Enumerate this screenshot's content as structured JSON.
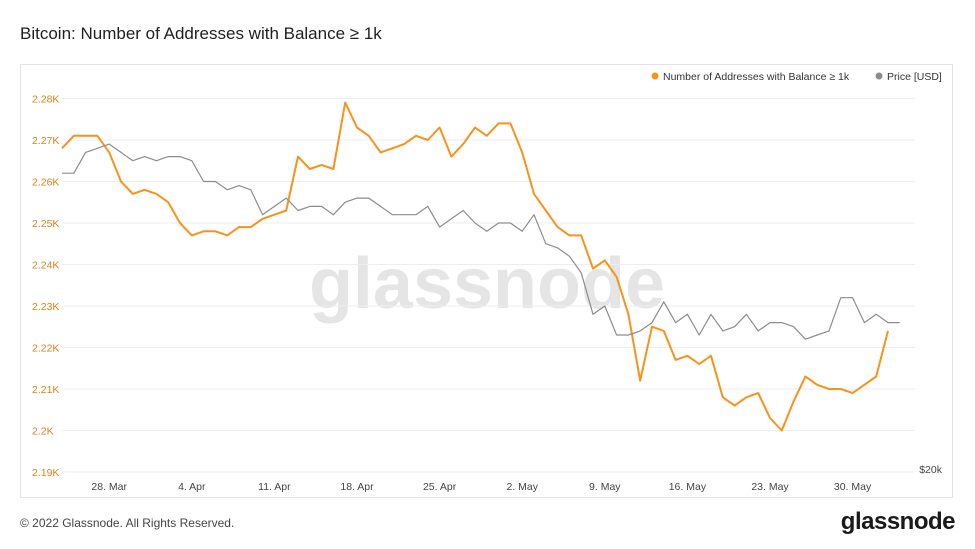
{
  "title": "Bitcoin: Number of Addresses with Balance ≥ 1k",
  "watermark": "glassnode",
  "footer": "© 2022 Glassnode. All Rights Reserved.",
  "logo": "glassnode",
  "colors": {
    "addresses": "#f7931a",
    "price": "#8c8c8c",
    "grid": "#eeeeee",
    "axis_text_left": "#d9831a"
  },
  "chart_data": {
    "type": "line",
    "title": "Bitcoin: Number of Addresses with Balance ≥ 1k",
    "legend_position": "top-right",
    "grid": true,
    "x_ticks": [
      "28. Mar",
      "4. Apr",
      "11. Apr",
      "18. Apr",
      "25. Apr",
      "2. May",
      "9. May",
      "16. May",
      "23. May",
      "30. May"
    ],
    "y_left_ticks": [
      "2.19K",
      "2.2K",
      "2.21K",
      "2.22K",
      "2.23K",
      "2.24K",
      "2.25K",
      "2.26K",
      "2.27K",
      "2.28K"
    ],
    "y_left_range": [
      2190,
      2283
    ],
    "y_right_label": "$20k",
    "start_date": "2022-03-24",
    "series": [
      {
        "name": "Number of Addresses with Balance ≥ 1k",
        "axis": "left",
        "values": [
          2268,
          2271,
          2271,
          2271,
          2267,
          2260,
          2257,
          2258,
          2257,
          2255,
          2250,
          2247,
          2248,
          2248,
          2247,
          2249,
          2249,
          2251,
          2252,
          2253,
          2266,
          2263,
          2264,
          2263,
          2279,
          2273,
          2271,
          2267,
          2268,
          2269,
          2271,
          2270,
          2273,
          2266,
          2269,
          2273,
          2271,
          2274,
          2274,
          2267,
          2257,
          2253,
          2249,
          2247,
          2247,
          2239,
          2241,
          2237,
          2228,
          2212,
          2225,
          2224,
          2217,
          2218,
          2216,
          2218,
          2208,
          2206,
          2208,
          2209,
          2203,
          2200,
          2207,
          2213,
          2211,
          2210,
          2210,
          2209,
          2211,
          2213,
          2224
        ]
      },
      {
        "name": "Price [USD]",
        "axis": "right",
        "values": [
          2262,
          2262,
          2267,
          2268,
          2269,
          2267,
          2265,
          2266,
          2265,
          2266,
          2266,
          2265,
          2260,
          2260,
          2258,
          2259,
          2258,
          2252,
          2254,
          2256,
          2253,
          2254,
          2254,
          2252,
          2255,
          2256,
          2256,
          2254,
          2252,
          2252,
          2252,
          2254,
          2249,
          2251,
          2253,
          2250,
          2248,
          2250,
          2250,
          2248,
          2252,
          2245,
          2244,
          2242,
          2238,
          2228,
          2230,
          2223,
          2223,
          2224,
          2226,
          2231,
          2226,
          2228,
          2223,
          2228,
          2224,
          2225,
          2228,
          2224,
          2226,
          2226,
          2225,
          2222,
          2223,
          2224,
          2232,
          2232,
          2226,
          2228,
          2226,
          2226
        ]
      }
    ]
  }
}
